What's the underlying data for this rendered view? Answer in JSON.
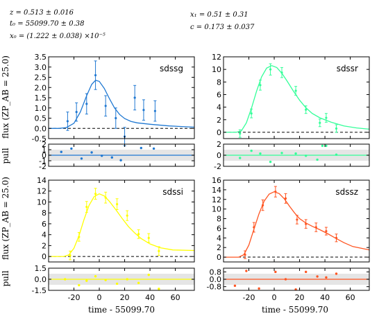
{
  "parameters": {
    "line1": "z = 0.513 ± 0.016",
    "line2": "t₀ = 55099.70 ± 0.38",
    "line3": "x₀ = (1.222 ± 0.038) ×10⁻⁵",
    "line4": "x₁ = 0.51 ± 0.31",
    "line5": "c = 0.173 ± 0.037"
  },
  "axis_labels": {
    "flux": "flux (ZP_AB = 25.0)",
    "pull": "pull",
    "time": "time - 55099.70"
  },
  "chart_data": [
    {
      "type": "scatter",
      "name": "sdssg",
      "color": "#1f78d2",
      "xlim": [
        -40,
        75
      ],
      "ylim": [
        -0.5,
        3.5
      ],
      "yticks": [
        "3.5",
        "3.0",
        "2.5",
        "2.0",
        "1.5",
        "1.0",
        "0.5",
        "0.0",
        "-0.5"
      ],
      "points": [
        {
          "x": -25,
          "y": 0.35,
          "err": 0.45
        },
        {
          "x": -18,
          "y": 0.8,
          "err": 0.45
        },
        {
          "x": -10,
          "y": 1.2,
          "err": 0.5
        },
        {
          "x": -3,
          "y": 2.6,
          "err": 0.7
        },
        {
          "x": 5,
          "y": 1.1,
          "err": 0.5
        },
        {
          "x": 13,
          "y": 0.5,
          "err": 0.5
        },
        {
          "x": 20,
          "y": -0.4,
          "err": 0.45
        },
        {
          "x": 28,
          "y": 1.5,
          "err": 0.6
        },
        {
          "x": 35,
          "y": 0.9,
          "err": 0.5
        },
        {
          "x": 44,
          "y": 0.85,
          "err": 0.5
        }
      ],
      "model": [
        [
          -40,
          0.0
        ],
        [
          -32,
          0.0
        ],
        [
          -26,
          0.04
        ],
        [
          -20,
          0.25
        ],
        [
          -15,
          0.8
        ],
        [
          -10,
          1.6
        ],
        [
          -6,
          2.15
        ],
        [
          -3,
          2.35
        ],
        [
          0,
          2.3
        ],
        [
          4,
          1.95
        ],
        [
          8,
          1.45
        ],
        [
          12,
          1.0
        ],
        [
          16,
          0.68
        ],
        [
          20,
          0.48
        ],
        [
          25,
          0.34
        ],
        [
          30,
          0.27
        ],
        [
          40,
          0.2
        ],
        [
          55,
          0.12
        ],
        [
          75,
          0.06
        ]
      ],
      "pull": {
        "ylim": [
          -2,
          2
        ],
        "yticks": [
          "2",
          "1",
          "0",
          "-1",
          "-2"
        ],
        "points": [
          [
            -30,
            0.6
          ],
          [
            -22,
            1.2
          ],
          [
            -14,
            -0.6
          ],
          [
            -6,
            0.5
          ],
          [
            2,
            -0.1
          ],
          [
            10,
            -0.4
          ],
          [
            17,
            -0.9
          ],
          [
            33,
            1.3
          ],
          [
            43,
            1.2
          ]
        ]
      }
    },
    {
      "type": "scatter",
      "name": "sdssr",
      "color": "#33ff99",
      "xlim": [
        -40,
        75
      ],
      "ylim": [
        -1,
        12
      ],
      "yticks": [
        "12",
        "10",
        "8",
        "6",
        "4",
        "2",
        "0"
      ],
      "points": [
        {
          "x": -27,
          "y": -0.2,
          "err": 0.6
        },
        {
          "x": -18,
          "y": 3.0,
          "err": 0.7
        },
        {
          "x": -11,
          "y": 7.5,
          "err": 0.8
        },
        {
          "x": -3,
          "y": 10.0,
          "err": 0.9
        },
        {
          "x": 6,
          "y": 9.5,
          "err": 0.8
        },
        {
          "x": 17,
          "y": 6.6,
          "err": 0.7
        },
        {
          "x": 25,
          "y": 3.6,
          "err": 0.6
        },
        {
          "x": 36,
          "y": 1.5,
          "err": 0.6
        },
        {
          "x": 41,
          "y": 2.3,
          "err": 0.7
        },
        {
          "x": 49,
          "y": 0.6,
          "err": 0.6
        }
      ],
      "model": [
        [
          -40,
          0.0
        ],
        [
          -30,
          0.0
        ],
        [
          -26,
          0.2
        ],
        [
          -22,
          1.5
        ],
        [
          -18,
          3.8
        ],
        [
          -14,
          6.5
        ],
        [
          -10,
          8.8
        ],
        [
          -6,
          10.2
        ],
        [
          -2,
          10.6
        ],
        [
          2,
          10.3
        ],
        [
          6,
          9.4
        ],
        [
          10,
          8.2
        ],
        [
          15,
          6.6
        ],
        [
          20,
          5.1
        ],
        [
          25,
          3.9
        ],
        [
          30,
          3.0
        ],
        [
          36,
          2.3
        ],
        [
          45,
          1.6
        ],
        [
          55,
          1.0
        ],
        [
          65,
          0.7
        ],
        [
          75,
          0.5
        ]
      ],
      "pull": {
        "ylim": [
          -2,
          2
        ],
        "yticks": [
          "2",
          "0",
          "-2"
        ],
        "points": [
          [
            -27,
            -0.5
          ],
          [
            -18,
            0.8
          ],
          [
            -11,
            0.3
          ],
          [
            -3,
            -1.2
          ],
          [
            6,
            0.4
          ],
          [
            17,
            0.3
          ],
          [
            25,
            -0.1
          ],
          [
            34,
            -0.8
          ],
          [
            38,
            1.7
          ],
          [
            41,
            1.7
          ],
          [
            49,
            0.1
          ]
        ]
      }
    },
    {
      "type": "scatter",
      "name": "sdssi",
      "color": "#ffff00",
      "xlim": [
        -40,
        75
      ],
      "ylim": [
        -1,
        14
      ],
      "yticks": [
        "14",
        "12",
        "10",
        "8",
        "6",
        "4",
        "2",
        "0"
      ],
      "points": [
        {
          "x": -23,
          "y": 0.2,
          "err": 0.8
        },
        {
          "x": -16,
          "y": 3.6,
          "err": 0.8
        },
        {
          "x": -10,
          "y": 9.1,
          "err": 1.0
        },
        {
          "x": -3,
          "y": 11.5,
          "err": 1.0
        },
        {
          "x": 5,
          "y": 10.8,
          "err": 1.0
        },
        {
          "x": 14,
          "y": 9.6,
          "err": 1.0
        },
        {
          "x": 22,
          "y": 7.5,
          "err": 0.9
        },
        {
          "x": 31,
          "y": 4.1,
          "err": 0.8
        },
        {
          "x": 39,
          "y": 3.4,
          "err": 0.8
        },
        {
          "x": 47,
          "y": 1.0,
          "err": 0.8
        }
      ],
      "model": [
        [
          -40,
          0.0
        ],
        [
          -28,
          0.0
        ],
        [
          -24,
          0.3
        ],
        [
          -20,
          1.5
        ],
        [
          -16,
          3.8
        ],
        [
          -12,
          6.8
        ],
        [
          -8,
          9.4
        ],
        [
          -4,
          11.0
        ],
        [
          0,
          11.5
        ],
        [
          4,
          11.1
        ],
        [
          8,
          10.1
        ],
        [
          13,
          8.6
        ],
        [
          18,
          7.0
        ],
        [
          23,
          5.5
        ],
        [
          28,
          4.3
        ],
        [
          33,
          3.3
        ],
        [
          40,
          2.3
        ],
        [
          48,
          1.6
        ],
        [
          58,
          1.2
        ],
        [
          75,
          1.1
        ]
      ],
      "pull": {
        "ylim": [
          -1.5,
          1.5
        ],
        "yticks": [
          "1.5",
          "0.0",
          "-1.5"
        ],
        "points": [
          [
            -27,
            0.0
          ],
          [
            -16,
            -0.8
          ],
          [
            -10,
            -0.2
          ],
          [
            -3,
            0.4
          ],
          [
            5,
            -0.1
          ],
          [
            14,
            -0.6
          ],
          [
            22,
            0.0
          ],
          [
            31,
            -0.5
          ],
          [
            39,
            0.6
          ],
          [
            47,
            -1.3
          ]
        ]
      }
    },
    {
      "type": "scatter",
      "name": "sdssz",
      "color": "#ff5522",
      "xlim": [
        -40,
        75
      ],
      "ylim": [
        -1,
        16
      ],
      "yticks": [
        "16",
        "14",
        "12",
        "10",
        "8",
        "6",
        "4",
        "2",
        "0"
      ],
      "points": [
        {
          "x": -23,
          "y": 0.5,
          "err": 0.8
        },
        {
          "x": -16,
          "y": 6.2,
          "err": 1.0
        },
        {
          "x": -9,
          "y": 10.8,
          "err": 1.1
        },
        {
          "x": 1,
          "y": 13.6,
          "err": 1.1
        },
        {
          "x": 9,
          "y": 12.2,
          "err": 1.0
        },
        {
          "x": 18,
          "y": 7.8,
          "err": 0.9
        },
        {
          "x": 25,
          "y": 6.9,
          "err": 0.9
        },
        {
          "x": 33,
          "y": 6.2,
          "err": 0.9
        },
        {
          "x": 41,
          "y": 5.4,
          "err": 0.8
        },
        {
          "x": 49,
          "y": 4.0,
          "err": 0.8
        }
      ],
      "model": [
        [
          -40,
          0.0
        ],
        [
          -28,
          0.0
        ],
        [
          -24,
          0.5
        ],
        [
          -20,
          2.5
        ],
        [
          -16,
          5.8
        ],
        [
          -12,
          9.0
        ],
        [
          -8,
          11.6
        ],
        [
          -4,
          13.1
        ],
        [
          0,
          13.6
        ],
        [
          4,
          13.2
        ],
        [
          8,
          12.1
        ],
        [
          12,
          10.6
        ],
        [
          16,
          9.2
        ],
        [
          20,
          8.0
        ],
        [
          25,
          7.1
        ],
        [
          30,
          6.4
        ],
        [
          36,
          5.7
        ],
        [
          42,
          4.9
        ],
        [
          48,
          4.0
        ],
        [
          55,
          3.0
        ],
        [
          62,
          2.2
        ],
        [
          75,
          1.5
        ]
      ],
      "pull": {
        "ylim": [
          -1.2,
          1.2
        ],
        "yticks": [
          "0.8",
          "0.0",
          "-0.8"
        ],
        "points": [
          [
            -31,
            -0.7
          ],
          [
            -22,
            0.9
          ],
          [
            -12,
            -1.0
          ],
          [
            1,
            0.8
          ],
          [
            9,
            0.0
          ],
          [
            17,
            -1.1
          ],
          [
            25,
            0.8
          ],
          [
            34,
            0.3
          ],
          [
            41,
            0.2
          ],
          [
            49,
            0.6
          ]
        ]
      }
    }
  ],
  "x_ticks": [
    "-20",
    "0",
    "20",
    "40",
    "60"
  ]
}
